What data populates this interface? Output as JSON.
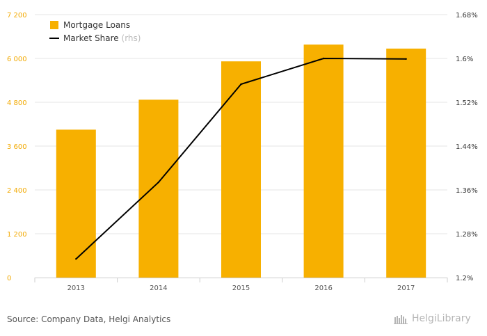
{
  "chart_data": {
    "type": "bar",
    "categories": [
      "2013",
      "2014",
      "2015",
      "2016",
      "2017"
    ],
    "series": [
      {
        "name": "Mortgage Loans",
        "type": "bar",
        "axis": "left",
        "color": "#f7b000",
        "values": [
          4050,
          4870,
          5920,
          6380,
          6270
        ]
      },
      {
        "name": "Market Share",
        "legend_suffix": "(rhs)",
        "type": "line",
        "axis": "right",
        "color": "#000000",
        "values": [
          1.234,
          1.374,
          1.553,
          1.6,
          1.599
        ]
      }
    ],
    "y_left": {
      "ylim": [
        0,
        7200
      ],
      "ticks": [
        "0",
        "1 200",
        "2 400",
        "3 600",
        "4 800",
        "6 000",
        "7 200"
      ]
    },
    "y_right": {
      "ylim": [
        1.2,
        1.68
      ],
      "ticks": [
        "1.2%",
        "1.28%",
        "1.36%",
        "1.44%",
        "1.52%",
        "1.6%",
        "1.68%"
      ]
    },
    "grid": "horizontal",
    "legend_position": "top-left"
  },
  "footer": {
    "source": "Source: Company Data, Helgi Analytics",
    "brand": "HelgiLibrary"
  }
}
